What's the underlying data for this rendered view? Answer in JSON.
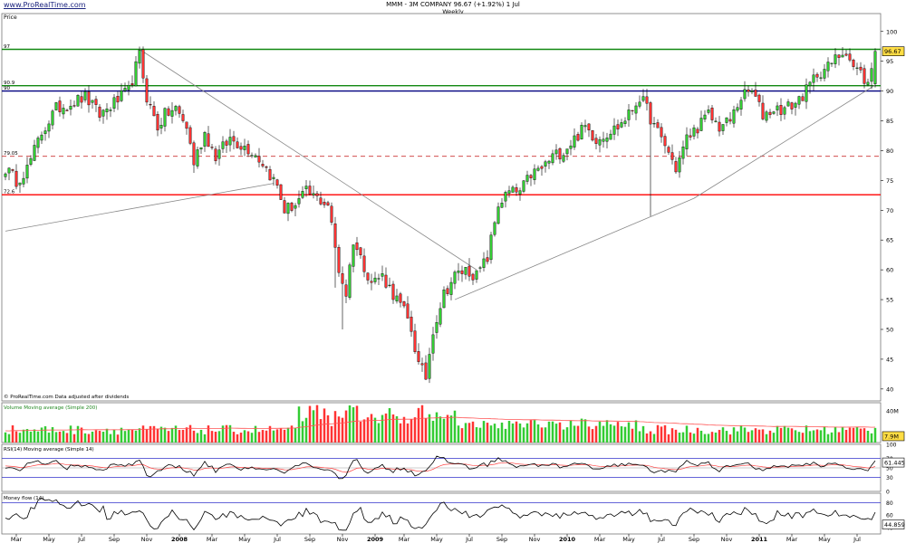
{
  "header": {
    "site_link": "www.ProRealTime.com",
    "title": "MMM - 3M COMPANY   96.67 (+1.92%)   1 Jul",
    "subtitle": "Weekly"
  },
  "colors": {
    "up": "#33cc33",
    "down": "#ff3333",
    "resistance": "#118811",
    "support": "#ff0000",
    "level_90": "#000080",
    "dashed": "#cc3333",
    "trend": "#888888",
    "rsi": "#000000",
    "rsi_ma": "#ff4444",
    "vol_ma": "#ff5555"
  },
  "chart_data": {
    "type": "candlestick",
    "symbol": "MMM - 3M COMPANY",
    "timeframe": "Weekly",
    "last_price": "96.67",
    "change": "(+1.92%)",
    "date": "1 Jul",
    "panels": [
      {
        "id": "price",
        "label": "Price",
        "ylim": [
          38,
          103
        ],
        "yticks": [
          40,
          45,
          50,
          55,
          60,
          65,
          70,
          75,
          80,
          85,
          90,
          95,
          100
        ],
        "horizontal_lines": [
          {
            "value": 97,
            "label": "97",
            "style": "solid",
            "color_key": "resistance"
          },
          {
            "value": 90.9,
            "label": "90.9",
            "style": "solid",
            "color_key": "resistance"
          },
          {
            "value": 90,
            "label": "90",
            "style": "solid",
            "color_key": "level_90"
          },
          {
            "value": 79.05,
            "label": "79.05",
            "style": "dashed",
            "color_key": "dashed"
          },
          {
            "value": 72.6,
            "label": "72.6",
            "style": "solid",
            "color_key": "support"
          }
        ],
        "current_value_label": "96.67",
        "footer_note": "© ProRealTime.com  Data adjusted after dividends",
        "trendlines": [
          {
            "from": [
              0,
              66.5
            ],
            "to": [
              74,
              74.5
            ]
          },
          {
            "from": [
              37,
              97
            ],
            "to": [
              130,
              60
            ]
          },
          {
            "from": [
              124,
              55
            ],
            "to": [
              190,
              72
            ]
          },
          {
            "from": [
              190,
              72
            ],
            "to": [
              240,
              91
            ]
          }
        ],
        "price_waypoints": [
          [
            0,
            77
          ],
          [
            3,
            75
          ],
          [
            6,
            77
          ],
          [
            10,
            83
          ],
          [
            14,
            87
          ],
          [
            18,
            88
          ],
          [
            22,
            89
          ],
          [
            26,
            86
          ],
          [
            30,
            88
          ],
          [
            34,
            90
          ],
          [
            37,
            96
          ],
          [
            39,
            89
          ],
          [
            42,
            84
          ],
          [
            44,
            86
          ],
          [
            47,
            87
          ],
          [
            50,
            84
          ],
          [
            52,
            78
          ],
          [
            55,
            83
          ],
          [
            58,
            79
          ],
          [
            62,
            82
          ],
          [
            65,
            81
          ],
          [
            68,
            80
          ],
          [
            71,
            78
          ],
          [
            75,
            74
          ],
          [
            77,
            70
          ],
          [
            80,
            71
          ],
          [
            83,
            73
          ],
          [
            86,
            72
          ],
          [
            89,
            71
          ],
          [
            92,
            60
          ],
          [
            94,
            56
          ],
          [
            96,
            65
          ],
          [
            98,
            62
          ],
          [
            101,
            58
          ],
          [
            104,
            59
          ],
          [
            107,
            56
          ],
          [
            110,
            53
          ],
          [
            112,
            50
          ],
          [
            114,
            44
          ],
          [
            116,
            42
          ],
          [
            118,
            50
          ],
          [
            121,
            56
          ],
          [
            124,
            59
          ],
          [
            127,
            60
          ],
          [
            130,
            59
          ],
          [
            133,
            62
          ],
          [
            136,
            71
          ],
          [
            139,
            73
          ],
          [
            142,
            73
          ],
          [
            145,
            76
          ],
          [
            148,
            77
          ],
          [
            151,
            79
          ],
          [
            154,
            80
          ],
          [
            157,
            82
          ],
          [
            160,
            84
          ],
          [
            163,
            82
          ],
          [
            166,
            83
          ],
          [
            169,
            84
          ],
          [
            172,
            86
          ],
          [
            175,
            89
          ],
          [
            177,
            87
          ],
          [
            179,
            84
          ],
          [
            182,
            81
          ],
          [
            185,
            77
          ],
          [
            188,
            82
          ],
          [
            191,
            84
          ],
          [
            194,
            86
          ],
          [
            197,
            84
          ],
          [
            200,
            85
          ],
          [
            203,
            89
          ],
          [
            206,
            90
          ],
          [
            209,
            86
          ],
          [
            212,
            87
          ],
          [
            215,
            87
          ],
          [
            218,
            88
          ],
          [
            221,
            90
          ],
          [
            224,
            93
          ],
          [
            227,
            94
          ],
          [
            230,
            96
          ],
          [
            232,
            97
          ],
          [
            234,
            94
          ],
          [
            236,
            93
          ],
          [
            238,
            91
          ],
          [
            240,
            96.67
          ]
        ],
        "wick_events": [
          {
            "bar": 93,
            "low": 50
          },
          {
            "bar": 178,
            "low": 69
          },
          {
            "bar": 91,
            "low": 57
          }
        ]
      },
      {
        "id": "volume",
        "label": "Volume   Moving average (Simple 200)",
        "ytick_label": "40M",
        "current_value_label": "7.9M",
        "ylim": [
          0,
          50
        ]
      },
      {
        "id": "rsi",
        "label": "RSI(14)   Moving average (Simple 14)",
        "yticks": [
          100,
          70,
          50,
          30,
          0
        ],
        "current_value_label": "61.445",
        "ylim": [
          0,
          100
        ]
      },
      {
        "id": "money_flow",
        "label": "Money flow (14)",
        "yticks": [
          80,
          60,
          40
        ],
        "current_value_label": "44.859",
        "ylim": [
          30,
          95
        ]
      }
    ],
    "x_axis": {
      "tick_labels": [
        {
          "label": "Mar",
          "bar": 3,
          "bold": false
        },
        {
          "label": "May",
          "bar": 12,
          "bold": false
        },
        {
          "label": "Jul",
          "bar": 21,
          "bold": false
        },
        {
          "label": "Sep",
          "bar": 30,
          "bold": false
        },
        {
          "label": "Nov",
          "bar": 39,
          "bold": false
        },
        {
          "label": "2008",
          "bar": 48,
          "bold": true
        },
        {
          "label": "Mar",
          "bar": 57,
          "bold": false
        },
        {
          "label": "May",
          "bar": 66,
          "bold": false
        },
        {
          "label": "Jul",
          "bar": 75,
          "bold": false
        },
        {
          "label": "Sep",
          "bar": 84,
          "bold": false
        },
        {
          "label": "Nov",
          "bar": 93,
          "bold": false
        },
        {
          "label": "2009",
          "bar": 102,
          "bold": true
        },
        {
          "label": "Mar",
          "bar": 110,
          "bold": false
        },
        {
          "label": "May",
          "bar": 119,
          "bold": false
        },
        {
          "label": "Jul",
          "bar": 128,
          "bold": false
        },
        {
          "label": "Sep",
          "bar": 137,
          "bold": false
        },
        {
          "label": "Nov",
          "bar": 146,
          "bold": false
        },
        {
          "label": "2010",
          "bar": 155,
          "bold": true
        },
        {
          "label": "Mar",
          "bar": 164,
          "bold": false
        },
        {
          "label": "May",
          "bar": 172,
          "bold": false
        },
        {
          "label": "Jul",
          "bar": 181,
          "bold": false
        },
        {
          "label": "Sep",
          "bar": 190,
          "bold": false
        },
        {
          "label": "Nov",
          "bar": 199,
          "bold": false
        },
        {
          "label": "2011",
          "bar": 208,
          "bold": true
        },
        {
          "label": "Mar",
          "bar": 217,
          "bold": false
        },
        {
          "label": "May",
          "bar": 226,
          "bold": false
        },
        {
          "label": "Jul",
          "bar": 235,
          "bold": false
        }
      ],
      "bar_count": 241
    }
  }
}
